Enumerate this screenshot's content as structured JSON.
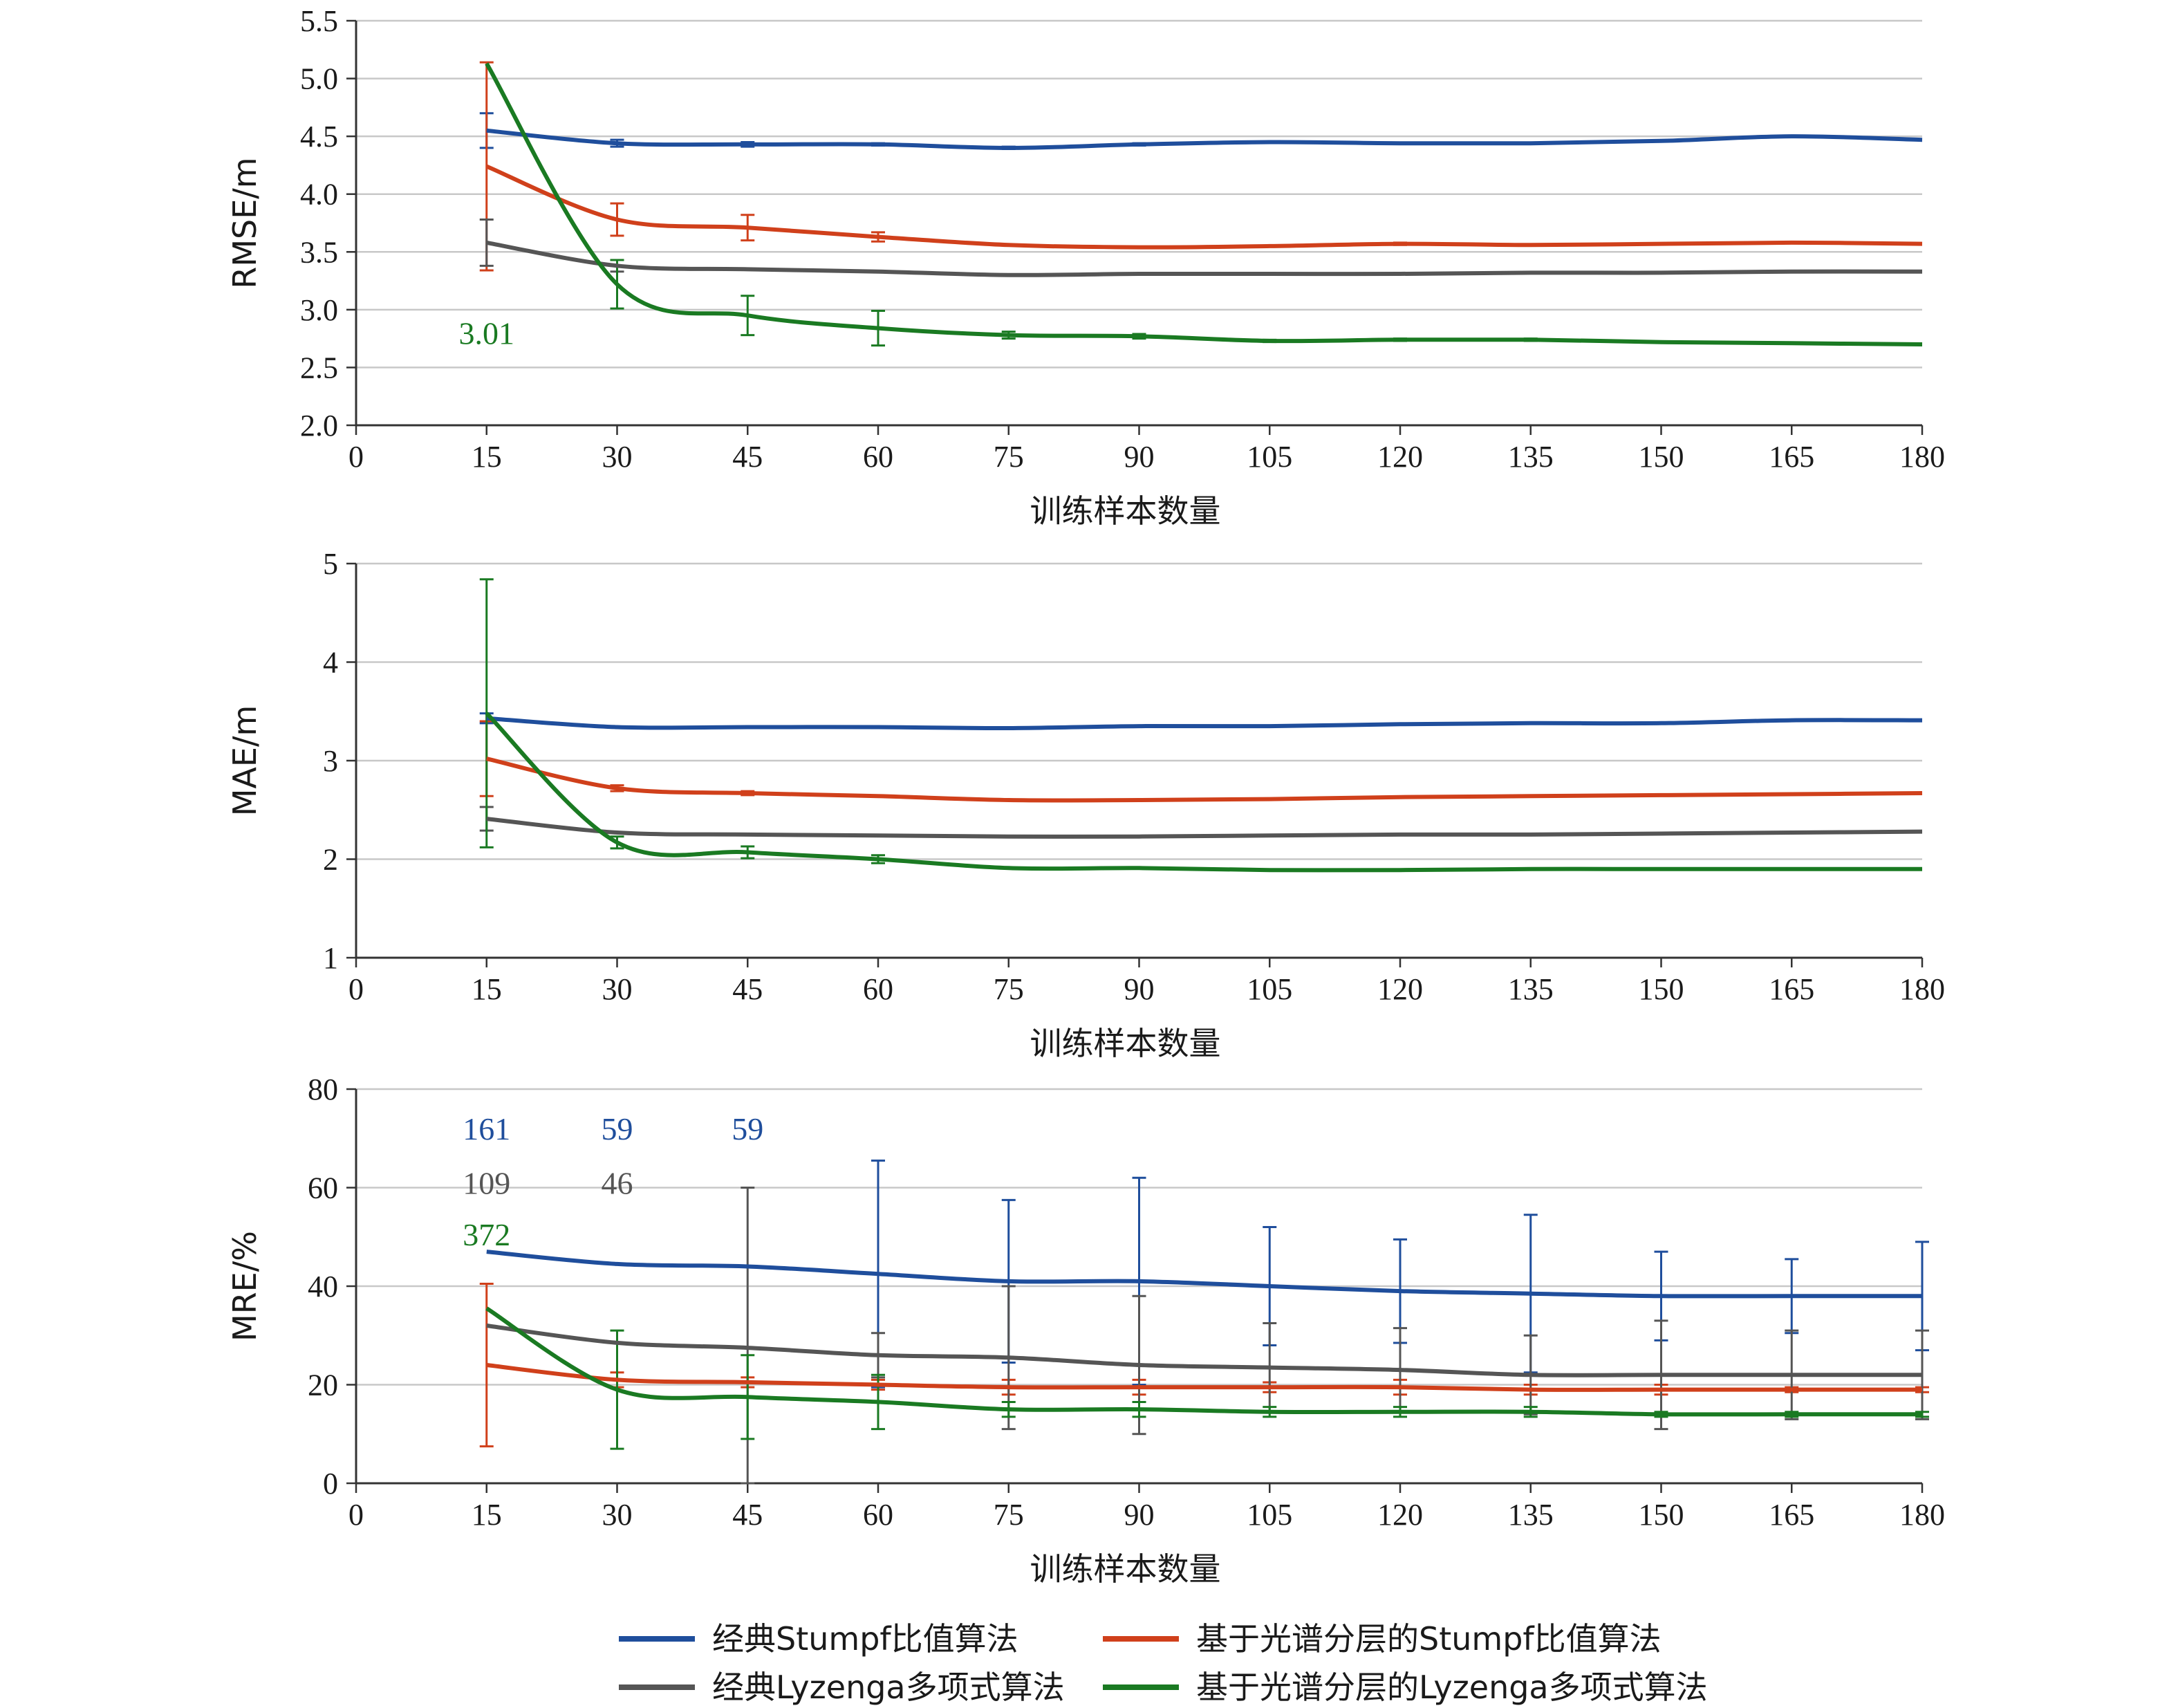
{
  "legend": [
    {
      "label": "经典Stumpf比值算法",
      "color": "#1f4e9c"
    },
    {
      "label": "基于光谱分层的Stumpf比值算法",
      "color": "#d0401b"
    },
    {
      "label": "经典Lyzenga多项式算法",
      "color": "#555555"
    },
    {
      "label": "基于光谱分层的Lyzenga多项式算法",
      "color": "#1a7a22"
    }
  ],
  "chart_data": [
    {
      "type": "line",
      "ylabel": "RMSE/m",
      "xlabel": "训练样本数量",
      "xlim": [
        0,
        180
      ],
      "ylim": [
        2.0,
        5.5
      ],
      "xticks": [
        "0",
        "15",
        "30",
        "45",
        "60",
        "75",
        "90",
        "105",
        "120",
        "135",
        "150",
        "165",
        "180"
      ],
      "yticks": [
        "2.0",
        "2.5",
        "3.0",
        "3.5",
        "4.0",
        "4.5",
        "5.0",
        "5.5"
      ],
      "grid": "horizontal",
      "x": [
        15,
        30,
        45,
        60,
        75,
        90,
        105,
        120,
        135,
        150,
        165,
        180
      ],
      "series": [
        {
          "name": "经典Stumpf比值算法",
          "color": "#1f4e9c",
          "values": [
            4.55,
            4.44,
            4.43,
            4.43,
            4.4,
            4.43,
            4.45,
            4.44,
            4.44,
            4.46,
            4.5,
            4.47
          ],
          "errors": [
            0.15,
            0.03,
            0.02,
            0.01,
            0.01,
            0.01,
            0,
            0,
            0,
            0,
            0,
            0
          ]
        },
        {
          "name": "基于光谱分层的Stumpf比值算法",
          "color": "#d0401b",
          "values": [
            4.24,
            3.78,
            3.71,
            3.63,
            3.56,
            3.54,
            3.55,
            3.57,
            3.56,
            3.57,
            3.58,
            3.57
          ],
          "errors": [
            0.9,
            0.14,
            0.11,
            0.04,
            0,
            0,
            0,
            0.01,
            0,
            0,
            0,
            0
          ]
        },
        {
          "name": "经典Lyzenga多项式算法",
          "color": "#555555",
          "values": [
            3.58,
            3.38,
            3.35,
            3.33,
            3.3,
            3.31,
            3.31,
            3.31,
            3.32,
            3.32,
            3.33,
            3.33
          ],
          "errors": [
            0.2,
            0.05,
            0,
            0,
            0,
            0,
            0,
            0,
            0,
            0,
            0,
            0
          ]
        },
        {
          "name": "基于光谱分层的Lyzenga多项式算法",
          "color": "#1a7a22",
          "values": [
            5.13,
            3.22,
            2.95,
            2.84,
            2.78,
            2.77,
            2.73,
            2.74,
            2.74,
            2.72,
            2.71,
            2.7
          ],
          "errors": [
            0,
            0.21,
            0.17,
            0.15,
            0.03,
            0.02,
            0.01,
            0.01,
            0.01,
            0,
            0,
            0
          ],
          "error_low_1": 0.0
        }
      ],
      "annotations": [
        {
          "text": "3.01",
          "color": "#1a7a22",
          "x": 15,
          "y": 2.8
        }
      ]
    },
    {
      "type": "line",
      "ylabel": "MAE/m",
      "xlabel": "训练样本数量",
      "xlim": [
        0,
        180
      ],
      "ylim": [
        1,
        5
      ],
      "xticks": [
        "0",
        "15",
        "30",
        "45",
        "60",
        "75",
        "90",
        "105",
        "120",
        "135",
        "150",
        "165",
        "180"
      ],
      "yticks": [
        "1",
        "2",
        "3",
        "4",
        "5"
      ],
      "grid": "horizontal",
      "x": [
        15,
        30,
        45,
        60,
        75,
        90,
        105,
        120,
        135,
        150,
        165,
        180
      ],
      "series": [
        {
          "name": "经典Stumpf比值算法",
          "color": "#1f4e9c",
          "values": [
            3.43,
            3.34,
            3.34,
            3.34,
            3.33,
            3.35,
            3.35,
            3.37,
            3.38,
            3.38,
            3.41,
            3.41
          ],
          "errors": [
            0.05,
            0,
            0,
            0,
            0,
            0,
            0,
            0,
            0,
            0,
            0,
            0
          ]
        },
        {
          "name": "基于光谱分层的Stumpf比值算法",
          "color": "#d0401b",
          "values": [
            3.02,
            2.72,
            2.67,
            2.64,
            2.6,
            2.6,
            2.61,
            2.63,
            2.64,
            2.65,
            2.66,
            2.67
          ],
          "errors": [
            0.38,
            0.03,
            0.02,
            0,
            0,
            0,
            0,
            0,
            0,
            0,
            0,
            0
          ]
        },
        {
          "name": "经典Lyzenga多项式算法",
          "color": "#555555",
          "values": [
            2.41,
            2.27,
            2.25,
            2.24,
            2.23,
            2.23,
            2.24,
            2.25,
            2.25,
            2.26,
            2.27,
            2.28
          ],
          "errors": [
            0.12,
            0,
            0,
            0,
            0,
            0,
            0,
            0,
            0,
            0,
            0,
            0
          ]
        },
        {
          "name": "基于光谱分层的Lyzenga多项式算法",
          "color": "#1a7a22",
          "values": [
            3.48,
            2.17,
            2.07,
            2.0,
            1.91,
            1.91,
            1.89,
            1.89,
            1.9,
            1.9,
            1.9,
            1.9
          ],
          "errors": [
            1.36,
            0.06,
            0.06,
            0.04,
            0,
            0,
            0,
            0,
            0,
            0,
            0,
            0
          ]
        }
      ],
      "annotations": []
    },
    {
      "type": "line",
      "ylabel": "MRE/%",
      "xlabel": "训练样本数量",
      "xlim": [
        0,
        180
      ],
      "ylim": [
        0,
        80
      ],
      "xticks": [
        "0",
        "15",
        "30",
        "45",
        "60",
        "75",
        "90",
        "105",
        "120",
        "135",
        "150",
        "165",
        "180"
      ],
      "yticks": [
        "0",
        "20",
        "40",
        "60",
        "80"
      ],
      "grid": "horizontal",
      "x": [
        15,
        30,
        45,
        60,
        75,
        90,
        105,
        120,
        135,
        150,
        165,
        180
      ],
      "series": [
        {
          "name": "经典Stumpf比值算法",
          "color": "#1f4e9c",
          "values": [
            47,
            44.5,
            44,
            42.5,
            41,
            41,
            40,
            39,
            38.5,
            38,
            38,
            38
          ],
          "errors": [
            0,
            0,
            0,
            23,
            16.5,
            21,
            12,
            10.5,
            16,
            9,
            7.5,
            11
          ]
        },
        {
          "name": "基于光谱分层的Stumpf比值算法",
          "color": "#d0401b",
          "values": [
            24,
            21,
            20.5,
            20,
            19.5,
            19.5,
            19.5,
            19.5,
            19,
            19,
            19,
            19
          ],
          "errors": [
            16.5,
            1.5,
            1,
            1,
            1.5,
            1.5,
            1,
            1.5,
            1,
            1,
            0.5,
            0.5
          ]
        },
        {
          "name": "经典Lyzenga多项式算法",
          "color": "#555555",
          "values": [
            32,
            28.5,
            27.5,
            26,
            25.5,
            24,
            23.5,
            23,
            22,
            22,
            22,
            22
          ],
          "errors": [
            0,
            0,
            32.5,
            4.5,
            14.5,
            14,
            9,
            8.5,
            8,
            11,
            9,
            9
          ]
        },
        {
          "name": "基于光谱分层的Lyzenga多项式算法",
          "color": "#1a7a22",
          "values": [
            35.5,
            19,
            17.5,
            16.5,
            15,
            15,
            14.5,
            14.5,
            14.5,
            14,
            14,
            14
          ],
          "errors": [
            0,
            12,
            8.5,
            5.5,
            1.5,
            1.5,
            1,
            1,
            1,
            0.5,
            0.5,
            0.5
          ]
        }
      ],
      "annotations": [
        {
          "text": "161",
          "color": "#1f4e9c",
          "x": 15,
          "y": 72
        },
        {
          "text": "59",
          "color": "#1f4e9c",
          "x": 30,
          "y": 72
        },
        {
          "text": "59",
          "color": "#1f4e9c",
          "x": 45,
          "y": 72
        },
        {
          "text": "109",
          "color": "#555555",
          "x": 15,
          "y": 61
        },
        {
          "text": "46",
          "color": "#555555",
          "x": 30,
          "y": 61
        },
        {
          "text": "372",
          "color": "#1a7a22",
          "x": 15,
          "y": 50.5
        }
      ]
    }
  ]
}
